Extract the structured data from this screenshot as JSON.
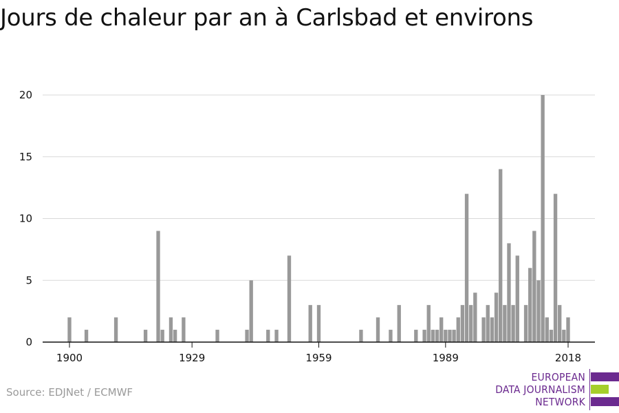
{
  "chart_data": {
    "type": "bar",
    "title": "Jours de chaleur par an à Carlsbad et environs",
    "xlabel": "",
    "ylabel": "",
    "x_range": [
      1900,
      2018
    ],
    "xticks": [
      "1900",
      "1929",
      "1959",
      "1989",
      "2018"
    ],
    "yticks": [
      "0",
      "5",
      "10",
      "15",
      "20"
    ],
    "ylim": [
      0,
      20
    ],
    "grid": true,
    "bar_color": "#999999",
    "grid_color": "#d9d9d9",
    "x": [
      1900,
      1904,
      1911,
      1918,
      1921,
      1922,
      1924,
      1925,
      1927,
      1935,
      1942,
      1943,
      1947,
      1949,
      1952,
      1957,
      1959,
      1969,
      1973,
      1976,
      1978,
      1982,
      1984,
      1985,
      1986,
      1987,
      1988,
      1989,
      1990,
      1991,
      1992,
      1993,
      1994,
      1995,
      1996,
      1998,
      1999,
      2000,
      2001,
      2002,
      2003,
      2004,
      2005,
      2006,
      2008,
      2009,
      2010,
      2011,
      2012,
      2013,
      2014,
      2015,
      2016,
      2017,
      2018
    ],
    "values": [
      2,
      1,
      2,
      1,
      9,
      1,
      2,
      1,
      2,
      1,
      1,
      5,
      1,
      1,
      7,
      3,
      3,
      1,
      2,
      1,
      3,
      1,
      1,
      3,
      1,
      1,
      2,
      1,
      1,
      1,
      2,
      3,
      12,
      3,
      4,
      2,
      3,
      2,
      4,
      14,
      3,
      8,
      3,
      7,
      3,
      6,
      9,
      5,
      20,
      2,
      1,
      12,
      3,
      1,
      2
    ]
  },
  "source": "Source: EDJNet / ECMWF",
  "logo": {
    "line1": "EUROPEAN",
    "line2": "DATA JOURNALISM",
    "line3": "NETWORK",
    "color": "#6b2a8f",
    "accent": "#a5cf2b"
  }
}
